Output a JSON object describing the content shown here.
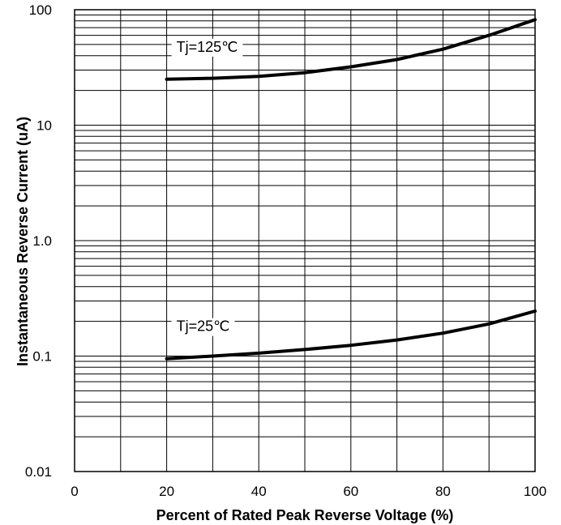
{
  "chart_data": {
    "type": "line",
    "xlabel": "Percent of Rated Peak Reverse Voltage (%)",
    "ylabel": "Instantaneous Reverse Current (uA)",
    "xlim": [
      0,
      100
    ],
    "ylim": [
      0.01,
      100
    ],
    "yscale": "log",
    "grid": true,
    "x_ticks": [
      0,
      20,
      40,
      60,
      80,
      100
    ],
    "x_tick_labels": [
      "0",
      "20",
      "40",
      "60",
      "80",
      "100"
    ],
    "y_ticks": [
      0.01,
      0.1,
      1,
      10,
      100
    ],
    "y_tick_labels": [
      "0.01",
      "0.1",
      "1.0",
      "10",
      "100"
    ],
    "series": [
      {
        "name": "Tj=125℃",
        "x": [
          20,
          30,
          40,
          50,
          60,
          70,
          80,
          90,
          100
        ],
        "y": [
          25,
          25.5,
          26.5,
          28.5,
          32,
          37,
          45.5,
          60,
          82
        ]
      },
      {
        "name": "Tj=25℃",
        "x": [
          20,
          30,
          40,
          50,
          60,
          70,
          80,
          90,
          100
        ],
        "y": [
          0.095,
          0.1,
          0.106,
          0.114,
          0.124,
          0.138,
          0.158,
          0.19,
          0.245
        ]
      }
    ],
    "annotations": [
      {
        "text": "Tj=125℃",
        "series": 0
      },
      {
        "text": "Tj=25℃",
        "series": 1
      }
    ],
    "colors": {
      "line": "#000000",
      "grid": "#000000",
      "background": "#ffffff"
    }
  }
}
